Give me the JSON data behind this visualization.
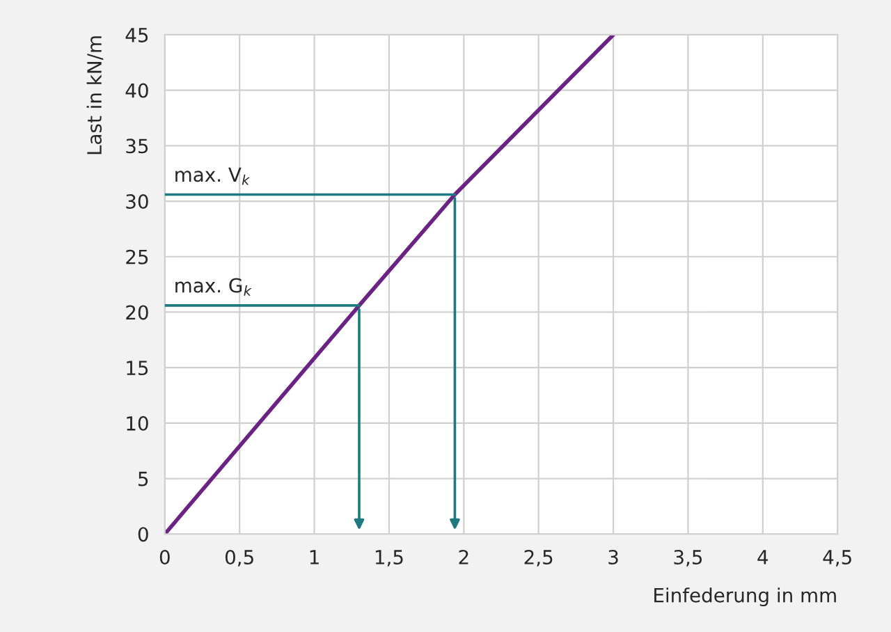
{
  "chart_data": {
    "type": "line",
    "xlabel": "Einfederung in mm",
    "ylabel": "Last in kN/m",
    "x": [
      0,
      1.3,
      1.94,
      3
    ],
    "series": [
      {
        "color": "#6a2283",
        "values": [
          0,
          20.6,
          30.6,
          45
        ]
      }
    ],
    "xlim": [
      0,
      4.5
    ],
    "ylim": [
      0,
      45
    ],
    "xticks": [
      {
        "value": 0,
        "label": "0"
      },
      {
        "value": 0.5,
        "label": "0,5"
      },
      {
        "value": 1,
        "label": "1"
      },
      {
        "value": 1.5,
        "label": "1,5"
      },
      {
        "value": 2,
        "label": "2"
      },
      {
        "value": 2.5,
        "label": "2,5"
      },
      {
        "value": 3,
        "label": "3"
      },
      {
        "value": 3.5,
        "label": "3,5"
      },
      {
        "value": 4,
        "label": "4"
      },
      {
        "value": 4.5,
        "label": "4,5"
      }
    ],
    "yticks": [
      0,
      5,
      10,
      15,
      20,
      25,
      30,
      35,
      40,
      45
    ],
    "grid": true,
    "annotations": [
      {
        "text": "max. G$_{k}$",
        "x": 1.3,
        "y": 20.6
      },
      {
        "text": "max. V$_{k}$",
        "x": 1.94,
        "y": 30.6
      }
    ]
  }
}
